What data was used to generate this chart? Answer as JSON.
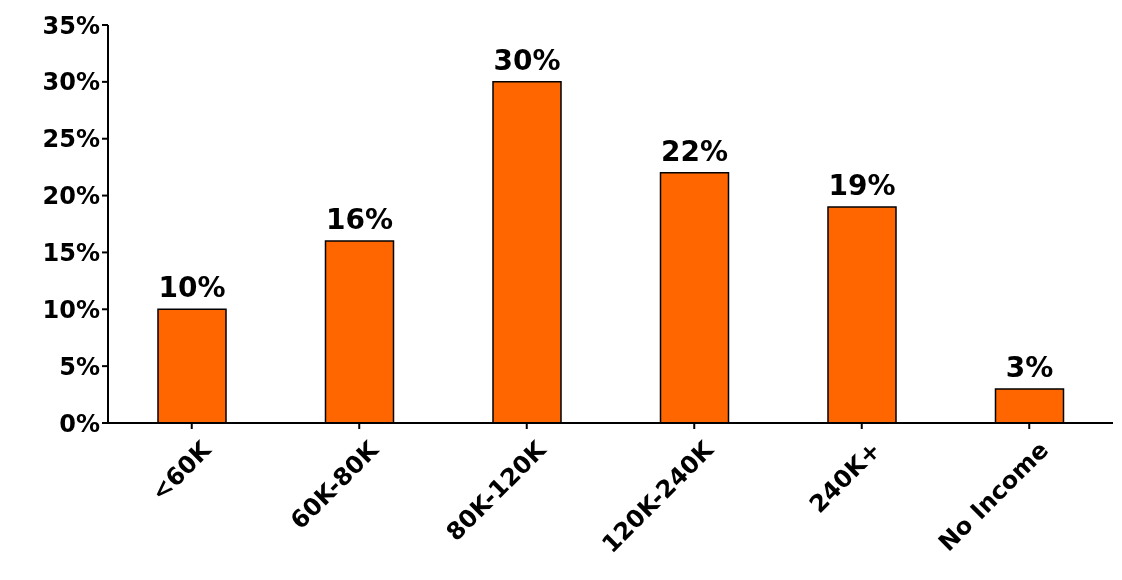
{
  "chart_data": {
    "type": "bar",
    "categories": [
      "<60K",
      "60K-80K",
      "80K-120K",
      "120K-240K",
      "240K+",
      "No Income"
    ],
    "values": [
      10,
      16,
      30,
      22,
      19,
      3
    ],
    "value_labels": [
      "10%",
      "16%",
      "30%",
      "22%",
      "19%",
      "3%"
    ],
    "color": "#ff6600",
    "ylim": [
      0,
      35
    ],
    "yticks": [
      {
        "value": 0,
        "label": "0%"
      },
      {
        "value": 5,
        "label": "5%"
      },
      {
        "value": 10,
        "label": "10%"
      },
      {
        "value": 15,
        "label": "15%"
      },
      {
        "value": 20,
        "label": "20%"
      },
      {
        "value": 25,
        "label": "25%"
      },
      {
        "value": 30,
        "label": "30%"
      },
      {
        "value": 35,
        "label": "35%"
      }
    ],
    "grid": false,
    "legend": false
  }
}
